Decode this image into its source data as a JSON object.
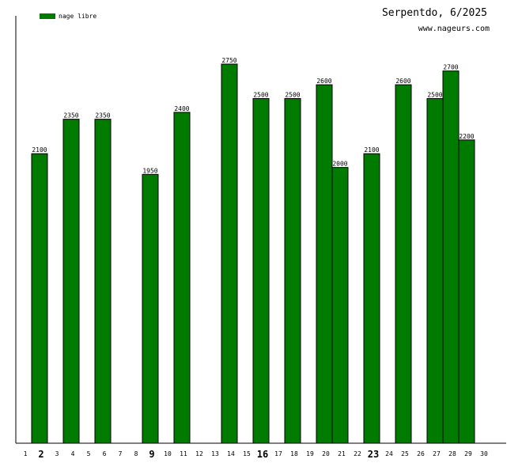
{
  "header": {
    "title": "Serpentdo, 6/2025",
    "source": "www.nageurs.com"
  },
  "colors": {
    "bar": "#007b00",
    "bar_outline": "#000000",
    "axis": "#000000",
    "background": "#ffffff"
  },
  "chart_data": {
    "type": "bar",
    "title": "Serpentdo, 6/2025",
    "xlabel": "",
    "ylabel": "",
    "legend": {
      "position": "top-left",
      "entries": [
        "nage libre"
      ]
    },
    "grid": false,
    "ylim": [
      0,
      3100
    ],
    "x_ticks": [
      "1",
      "2",
      "3",
      "4",
      "5",
      "6",
      "7",
      "8",
      "9",
      "10",
      "11",
      "12",
      "13",
      "14",
      "15",
      "16",
      "17",
      "18",
      "19",
      "20",
      "21",
      "22",
      "23",
      "24",
      "25",
      "26",
      "27",
      "28",
      "29",
      "30"
    ],
    "bold_ticks": [
      "2",
      "9",
      "16",
      "23"
    ],
    "series": [
      {
        "name": "nage libre",
        "points": [
          {
            "x": 2,
            "value": 2100
          },
          {
            "x": 4,
            "value": 2350
          },
          {
            "x": 6,
            "value": 2350
          },
          {
            "x": 9,
            "value": 1950
          },
          {
            "x": 11,
            "value": 2400
          },
          {
            "x": 14,
            "value": 2750
          },
          {
            "x": 16,
            "value": 2500
          },
          {
            "x": 18,
            "value": 2500
          },
          {
            "x": 20,
            "value": 2600
          },
          {
            "x": 21,
            "value": 2000
          },
          {
            "x": 23,
            "value": 2100
          },
          {
            "x": 25,
            "value": 2600
          },
          {
            "x": 27,
            "value": 2500
          },
          {
            "x": 28,
            "value": 2700
          },
          {
            "x": 29,
            "value": 2200
          }
        ]
      }
    ]
  }
}
